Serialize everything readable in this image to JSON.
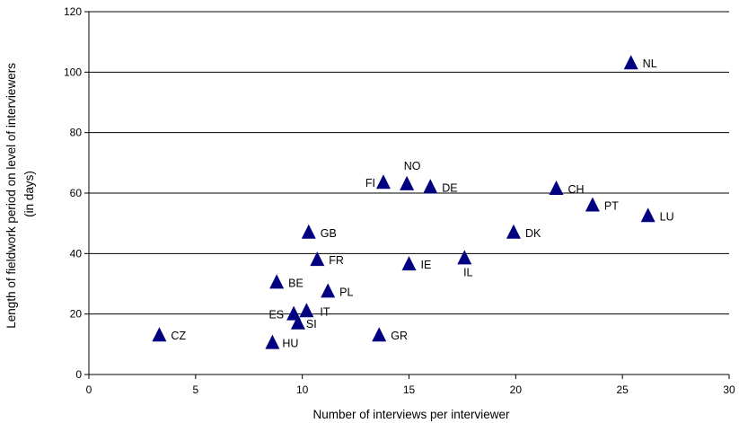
{
  "chart_data": {
    "type": "scatter",
    "xlabel": "Number of interviews per interviewer",
    "ylabel_lines": [
      "Length of fieldwork period on level of interviewers",
      "(in days)"
    ],
    "xlim": [
      0,
      30
    ],
    "ylim": [
      0,
      120
    ],
    "xticks": [
      "0",
      "5",
      "10",
      "15",
      "20",
      "25",
      "30"
    ],
    "yticks": [
      "0",
      "20",
      "40",
      "60",
      "80",
      "100",
      "120"
    ],
    "grid": "horizontal",
    "marker": "triangle",
    "marker_color": "#000080",
    "points": [
      {
        "label": "CZ",
        "x": 3.3,
        "y": 13
      },
      {
        "label": "HU",
        "x": 8.6,
        "y": 10.5
      },
      {
        "label": "BE",
        "x": 8.8,
        "y": 30.5
      },
      {
        "label": "ES",
        "x": 9.6,
        "y": 20
      },
      {
        "label": "SI",
        "x": 9.8,
        "y": 17
      },
      {
        "label": "IT",
        "x": 10.2,
        "y": 21
      },
      {
        "label": "GB",
        "x": 10.3,
        "y": 47
      },
      {
        "label": "FR",
        "x": 10.7,
        "y": 38
      },
      {
        "label": "PL",
        "x": 11.2,
        "y": 27.5
      },
      {
        "label": "GR",
        "x": 13.6,
        "y": 13
      },
      {
        "label": "FI",
        "x": 13.8,
        "y": 63.5
      },
      {
        "label": "NO",
        "x": 14.9,
        "y": 63
      },
      {
        "label": "IE",
        "x": 15.0,
        "y": 36.5
      },
      {
        "label": "DE",
        "x": 16.0,
        "y": 62
      },
      {
        "label": "IL",
        "x": 17.6,
        "y": 38.5
      },
      {
        "label": "DK",
        "x": 19.9,
        "y": 47
      },
      {
        "label": "CH",
        "x": 21.9,
        "y": 61.5
      },
      {
        "label": "PT",
        "x": 23.6,
        "y": 56
      },
      {
        "label": "NL",
        "x": 25.4,
        "y": 103
      },
      {
        "label": "LU",
        "x": 26.2,
        "y": 52.5
      }
    ]
  }
}
